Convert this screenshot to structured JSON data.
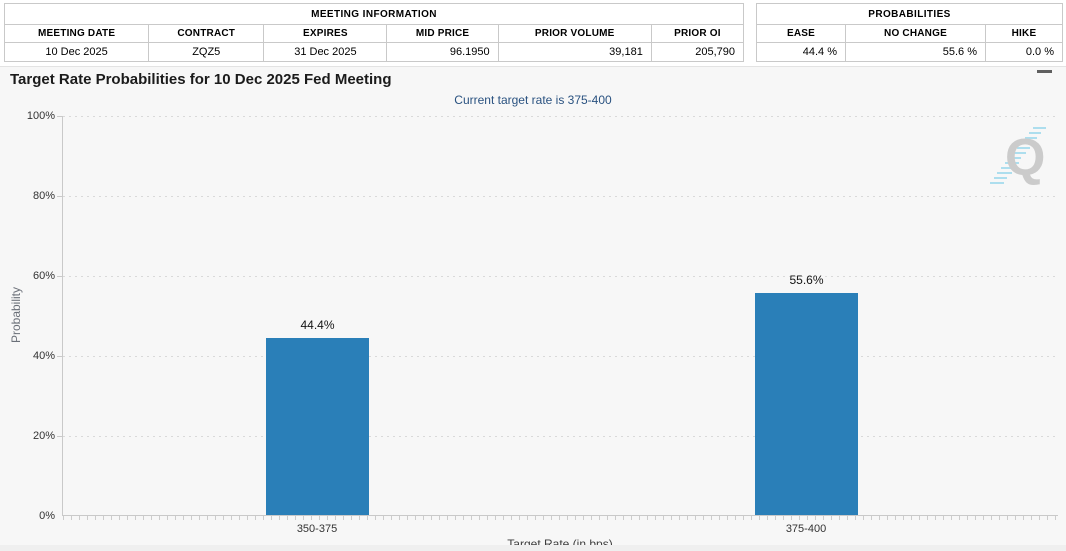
{
  "header": {
    "meeting_info": {
      "title": "MEETING INFORMATION",
      "columns": [
        "MEETING DATE",
        "CONTRACT",
        "EXPIRES",
        "MID PRICE",
        "PRIOR VOLUME",
        "PRIOR OI"
      ],
      "values": [
        "10 Dec 2025",
        "ZQZ5",
        "31 Dec 2025",
        "96.1950",
        "39,181",
        "205,790"
      ]
    },
    "probabilities": {
      "title": "PROBABILITIES",
      "columns": [
        "EASE",
        "NO CHANGE",
        "HIKE"
      ],
      "values": [
        "44.4 %",
        "55.6 %",
        "0.0 %"
      ]
    }
  },
  "chart_data": {
    "type": "bar",
    "title": "Target Rate Probabilities for 10 Dec 2025 Fed Meeting",
    "subtitle": "Current target rate is 375-400",
    "categories": [
      "350-375",
      "375-400"
    ],
    "values": [
      44.4,
      55.6
    ],
    "data_labels": [
      "44.4%",
      "55.6%"
    ],
    "xlabel": "Target Rate (in bps)",
    "ylabel": "Probability",
    "ylim": [
      0,
      100
    ],
    "yticks": [
      "100%",
      "80%",
      "60%",
      "40%",
      "20%",
      "0%"
    ],
    "grid": "dotted horizontal gridlines at 20% intervals",
    "legend": "none",
    "bar_color": "#2a7fb8"
  },
  "icons": {
    "menu_glyph": "hamburger",
    "watermark_glyph": "Q"
  }
}
